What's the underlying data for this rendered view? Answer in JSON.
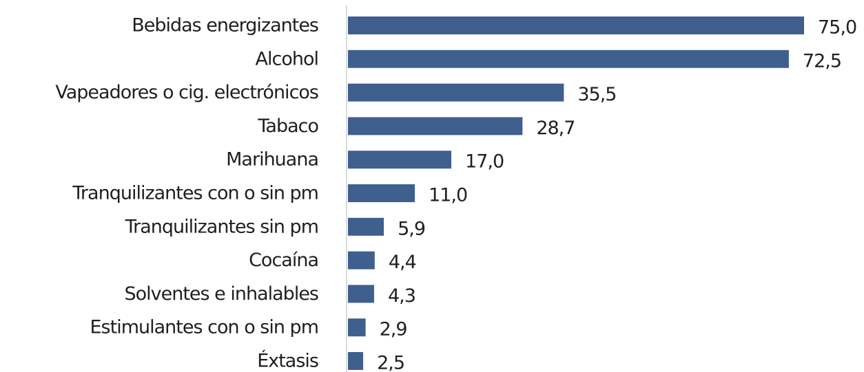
{
  "chart_data": {
    "type": "bar",
    "orientation": "horizontal",
    "categories": [
      "Bebidas energizantes",
      "Alcohol",
      "Vapeadores o cig. electrónicos",
      "Tabaco",
      "Marihuana",
      "Tranquilizantes con o sin pm",
      "Tranquilizantes sin pm",
      "Cocaína",
      "Solventes e inhalables",
      "Estimulantes con o sin pm",
      "Éxtasis"
    ],
    "values": [
      75.0,
      72.5,
      35.5,
      28.7,
      17.0,
      11.0,
      5.9,
      4.4,
      4.3,
      2.9,
      2.5
    ],
    "value_labels": [
      "75,0",
      "72,5",
      "35,5",
      "28,7",
      "17,0",
      "11,0",
      "5,9",
      "4,4",
      "4,3",
      "2,9",
      "2,5"
    ],
    "xlim": [
      0,
      75
    ],
    "bar_color": "#3f5f8e",
    "grid": false,
    "title": "",
    "xlabel": "",
    "ylabel": ""
  }
}
